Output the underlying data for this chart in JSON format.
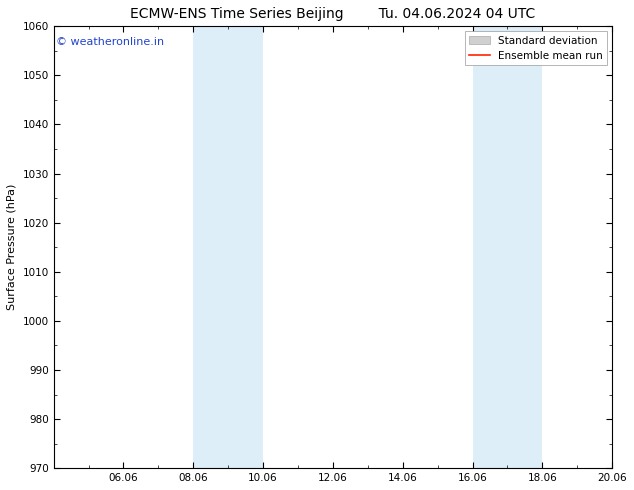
{
  "title_left": "ECMW-ENS Time Series Beijing",
  "title_right": "Tu. 04.06.2024 04 UTC",
  "ylabel": "Surface Pressure (hPa)",
  "ylim": [
    970,
    1060
  ],
  "yticks": [
    970,
    980,
    990,
    1000,
    1010,
    1020,
    1030,
    1040,
    1050,
    1060
  ],
  "xlim": [
    0,
    16
  ],
  "xtick_labels": [
    "06.06",
    "08.06",
    "10.06",
    "12.06",
    "14.06",
    "16.06",
    "18.06",
    "20.06"
  ],
  "xtick_positions": [
    2,
    4,
    6,
    8,
    10,
    12,
    14,
    16
  ],
  "shaded_bands": [
    {
      "x_start": 4,
      "x_end": 6
    },
    {
      "x_start": 12,
      "x_end": 14
    }
  ],
  "shade_color": "#ddeef8",
  "watermark_text": "© weatheronline.in",
  "watermark_color": "#2244cc",
  "legend_std_label": "Standard deviation",
  "legend_ens_label": "Ensemble mean run",
  "std_patch_facecolor": "#d0d0d0",
  "std_patch_edgecolor": "#aaaaaa",
  "ens_line_color": "#ff2200",
  "background_color": "#ffffff",
  "title_fontsize": 10,
  "axis_label_fontsize": 8,
  "tick_fontsize": 7.5,
  "watermark_fontsize": 8,
  "legend_fontsize": 7.5
}
